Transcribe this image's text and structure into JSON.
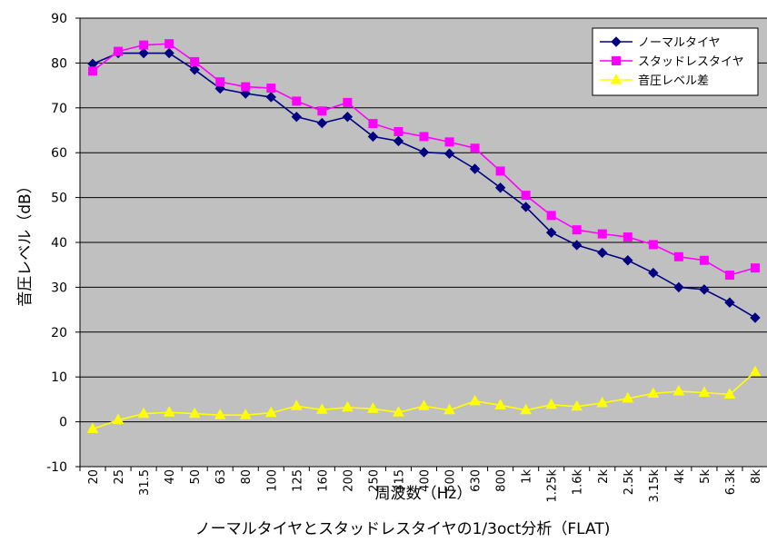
{
  "colors": {
    "plot_background": "#c0c0c0",
    "gridline": "#000000",
    "normal_tire": "#000080",
    "studded_tire": "#ff00ff",
    "level_difference": "#ffff00"
  },
  "chart_data": {
    "type": "line",
    "title": "ノーマルタイヤとスタッドレスタイヤの1/3oct分析（FLAT)",
    "xlabel": "周波数（Hz）",
    "ylabel": "音圧レベル（dB）",
    "ylim": [
      -10,
      90
    ],
    "yticks": [
      -10,
      0,
      10,
      20,
      30,
      40,
      50,
      60,
      70,
      80,
      90
    ],
    "grid": true,
    "legend_position": "top-right",
    "categories": [
      "20",
      "25",
      "31.5",
      "40",
      "50",
      "63",
      "80",
      "100",
      "125",
      "160",
      "200",
      "250",
      "315",
      "400",
      "500",
      "630",
      "800",
      "1k",
      "1.25k",
      "1.6k",
      "2k",
      "2.5k",
      "3.15k",
      "4k",
      "5k",
      "6.3k",
      "8k"
    ],
    "series": [
      {
        "name": "ノーマルタイヤ",
        "marker": "diamond",
        "values": [
          79.8,
          82.2,
          82.2,
          82.2,
          78.5,
          74.3,
          73.2,
          72.4,
          68.0,
          66.6,
          68.0,
          63.6,
          62.6,
          60.1,
          59.8,
          56.4,
          52.2,
          47.9,
          42.2,
          39.4,
          37.7,
          36.0,
          33.2,
          30.0,
          29.5,
          26.6,
          23.2
        ]
      },
      {
        "name": "スタッドレスタイヤ",
        "marker": "square",
        "values": [
          78.2,
          82.6,
          84.0,
          84.3,
          80.3,
          75.8,
          74.7,
          74.4,
          71.5,
          69.3,
          71.2,
          66.5,
          64.7,
          63.6,
          62.4,
          61.0,
          55.9,
          50.5,
          46.0,
          42.8,
          41.9,
          41.2,
          39.5,
          36.8,
          36.0,
          32.7,
          34.3
        ]
      },
      {
        "name": "音圧レベル差",
        "marker": "triangle",
        "values": [
          -1.6,
          0.4,
          1.8,
          2.1,
          1.8,
          1.5,
          1.5,
          2.0,
          3.5,
          2.7,
          3.2,
          2.9,
          2.1,
          3.5,
          2.6,
          4.6,
          3.7,
          2.6,
          3.8,
          3.4,
          4.2,
          5.2,
          6.3,
          6.8,
          6.5,
          6.1,
          11.1
        ]
      }
    ]
  }
}
